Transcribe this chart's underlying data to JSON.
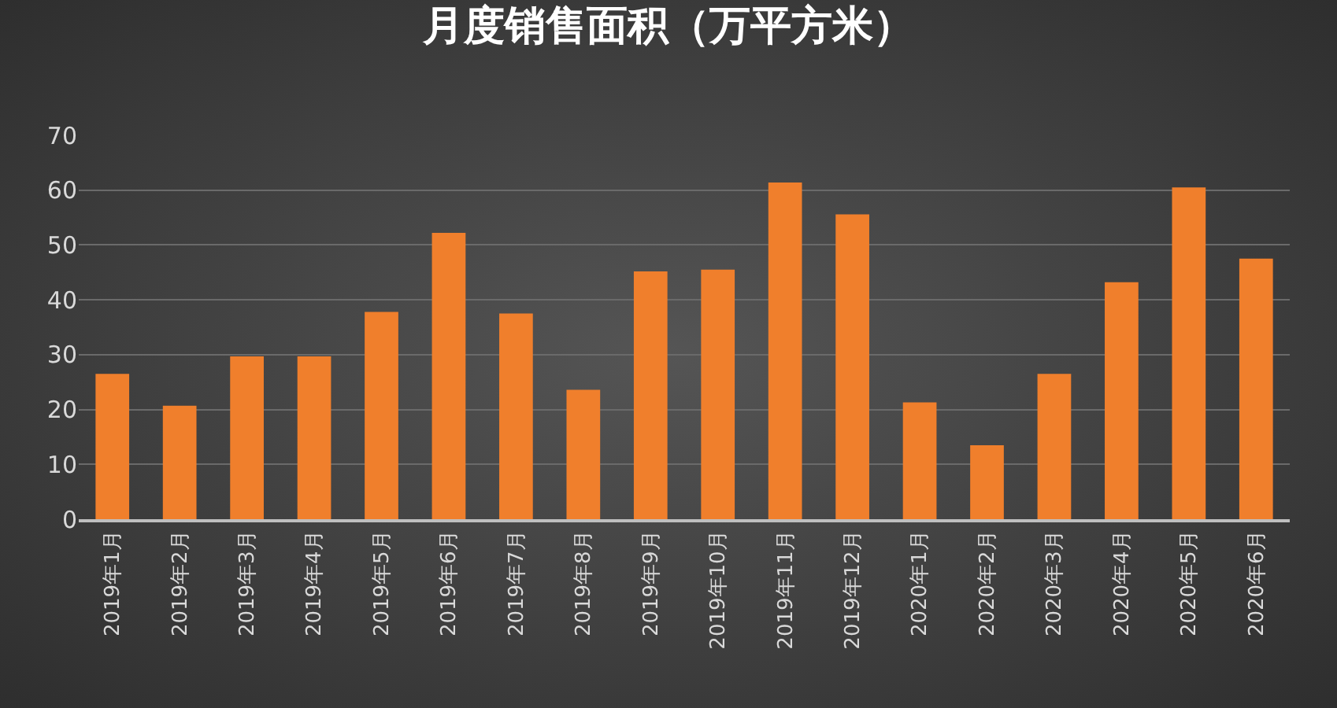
{
  "chart_data": {
    "type": "bar",
    "title": "月度销售面积（万平方米）",
    "categories": [
      "2019年1月",
      "2019年2月",
      "2019年3月",
      "2019年4月",
      "2019年5月",
      "2019年6月",
      "2019年7月",
      "2019年8月",
      "2019年9月",
      "2019年10月",
      "2019年11月",
      "2019年12月",
      "2020年1月",
      "2020年2月",
      "2020年3月",
      "2020年4月",
      "2020年5月",
      "2020年6月"
    ],
    "values": [
      26.5,
      20.7,
      29.7,
      29.7,
      37.8,
      52.2,
      37.5,
      23.6,
      45.2,
      45.5,
      61.4,
      55.6,
      21.3,
      13.5,
      26.5,
      43.2,
      60.5,
      47.5
    ],
    "color": "#f07f2c",
    "ylim": [
      0,
      70
    ],
    "yticks": [
      0,
      10,
      20,
      30,
      40,
      50,
      60,
      70
    ],
    "grid": "y"
  }
}
